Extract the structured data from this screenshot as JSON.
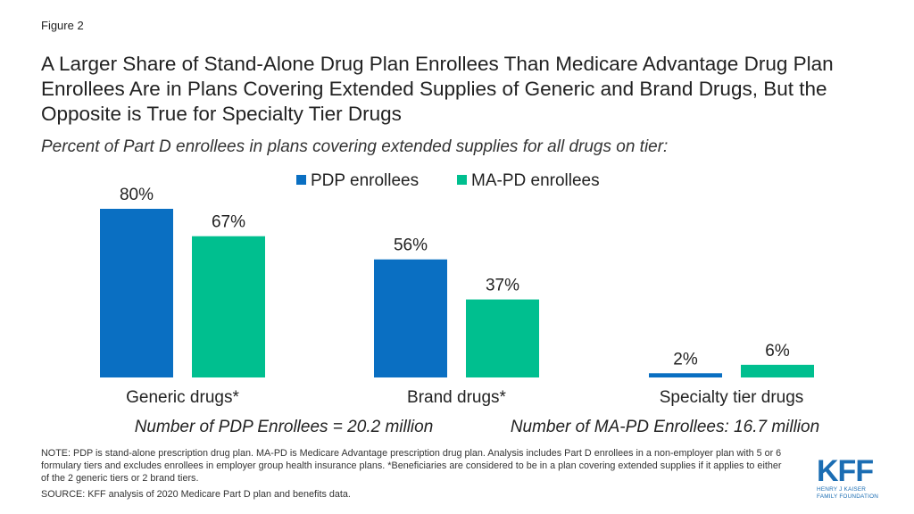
{
  "figure_label": "Figure 2",
  "title": "A Larger Share of Stand-Alone Drug Plan Enrollees Than Medicare Advantage Drug Plan Enrollees Are in Plans Covering Extended Supplies of Generic and Brand Drugs, But the Opposite is True for Specialty Tier Drugs",
  "subtitle": "Percent of Part D enrollees in plans covering extended supplies for all drugs on tier:",
  "chart_data": {
    "type": "bar",
    "categories": [
      "Generic drugs*",
      "Brand drugs*",
      "Specialty tier drugs"
    ],
    "series": [
      {
        "name": "PDP enrollees",
        "values": [
          80,
          56,
          2
        ],
        "color": "#0a6fc2"
      },
      {
        "name": "MA-PD enrollees",
        "values": [
          67,
          37,
          6
        ],
        "color": "#00bf8f"
      }
    ],
    "value_suffix": "%",
    "ylim": [
      0,
      80
    ],
    "grid": false,
    "legend_position": "top-center",
    "annotations": [
      "Number of PDP Enrollees = 20.2 million",
      "Number of MA-PD Enrollees: 16.7 million"
    ]
  },
  "note": "NOTE: PDP is stand-alone prescription drug plan. MA-PD is Medicare Advantage prescription drug plan. Analysis includes Part D enrollees in a non-employer plan with 5 or 6 formulary tiers and excludes enrollees in employer group health insurance plans. *Beneficiaries are considered to be in a plan covering extended supplies if it applies to either of the 2 generic tiers or 2 brand tiers.",
  "source": "SOURCE: KFF analysis of 2020 Medicare Part D plan and benefits data.",
  "logo": {
    "mark": "KFF",
    "line1": "HENRY J KAISER",
    "line2": "FAMILY FOUNDATION"
  }
}
